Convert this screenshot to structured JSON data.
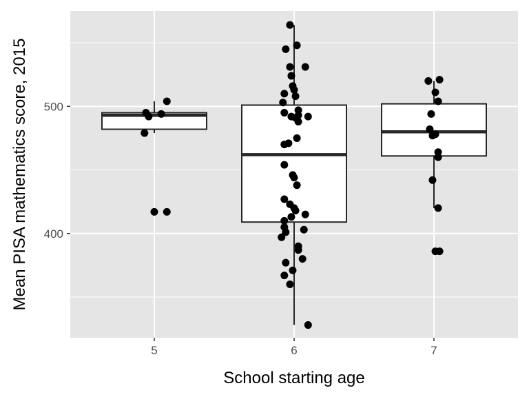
{
  "chart_data": {
    "type": "boxplot",
    "title": "",
    "xlabel": "School starting age",
    "ylabel": "Mean PISA mathematics score, 2015",
    "categories": [
      "5",
      "6",
      "7"
    ],
    "ylim": [
      318,
      575
    ],
    "y_ticks": [
      400,
      500
    ],
    "grid": true,
    "legend": "none",
    "boxes": [
      {
        "category": "5",
        "whisker_low": 479,
        "q1": 482,
        "median": 493,
        "q3": 495,
        "whisker_high": 504
      },
      {
        "category": "6",
        "whisker_low": 328,
        "q1": 409,
        "median": 462,
        "q3": 501,
        "whisker_high": 564
      },
      {
        "category": "7",
        "whisker_low": 420,
        "q1": 461,
        "median": 480,
        "q3": 502,
        "whisker_high": 520
      }
    ],
    "points": [
      {
        "x": 4.93,
        "y": 479
      },
      {
        "x": 4.94,
        "y": 495
      },
      {
        "x": 4.96,
        "y": 492
      },
      {
        "x": 5.05,
        "y": 494
      },
      {
        "x": 5.09,
        "y": 504
      },
      {
        "x": 5.0,
        "y": 417
      },
      {
        "x": 5.09,
        "y": 417
      },
      {
        "x": 5.97,
        "y": 564
      },
      {
        "x": 6.02,
        "y": 548
      },
      {
        "x": 5.94,
        "y": 545
      },
      {
        "x": 6.08,
        "y": 531
      },
      {
        "x": 5.97,
        "y": 531
      },
      {
        "x": 5.98,
        "y": 524
      },
      {
        "x": 5.99,
        "y": 516
      },
      {
        "x": 6.0,
        "y": 513
      },
      {
        "x": 5.93,
        "y": 510
      },
      {
        "x": 6.01,
        "y": 508
      },
      {
        "x": 5.92,
        "y": 503
      },
      {
        "x": 6.03,
        "y": 497
      },
      {
        "x": 5.93,
        "y": 495
      },
      {
        "x": 6.03,
        "y": 493
      },
      {
        "x": 5.98,
        "y": 492
      },
      {
        "x": 6.1,
        "y": 492
      },
      {
        "x": 6.01,
        "y": 491
      },
      {
        "x": 6.03,
        "y": 488
      },
      {
        "x": 6.02,
        "y": 475
      },
      {
        "x": 5.96,
        "y": 471
      },
      {
        "x": 5.93,
        "y": 470
      },
      {
        "x": 5.93,
        "y": 454
      },
      {
        "x": 5.99,
        "y": 446
      },
      {
        "x": 6.0,
        "y": 444
      },
      {
        "x": 6.02,
        "y": 438
      },
      {
        "x": 5.93,
        "y": 427
      },
      {
        "x": 5.97,
        "y": 423
      },
      {
        "x": 6.0,
        "y": 420
      },
      {
        "x": 6.01,
        "y": 418
      },
      {
        "x": 6.08,
        "y": 415
      },
      {
        "x": 5.98,
        "y": 413
      },
      {
        "x": 5.93,
        "y": 410
      },
      {
        "x": 5.93,
        "y": 405
      },
      {
        "x": 6.07,
        "y": 403
      },
      {
        "x": 5.94,
        "y": 401
      },
      {
        "x": 5.91,
        "y": 397
      },
      {
        "x": 6.03,
        "y": 390
      },
      {
        "x": 6.03,
        "y": 387
      },
      {
        "x": 6.06,
        "y": 380
      },
      {
        "x": 5.94,
        "y": 377
      },
      {
        "x": 5.99,
        "y": 371
      },
      {
        "x": 5.93,
        "y": 367
      },
      {
        "x": 5.97,
        "y": 360
      },
      {
        "x": 6.1,
        "y": 328
      },
      {
        "x": 6.96,
        "y": 520
      },
      {
        "x": 7.04,
        "y": 521
      },
      {
        "x": 7.01,
        "y": 511
      },
      {
        "x": 7.03,
        "y": 504
      },
      {
        "x": 6.98,
        "y": 494
      },
      {
        "x": 6.97,
        "y": 482
      },
      {
        "x": 7.01,
        "y": 478
      },
      {
        "x": 6.99,
        "y": 477
      },
      {
        "x": 7.03,
        "y": 464
      },
      {
        "x": 7.03,
        "y": 460
      },
      {
        "x": 6.99,
        "y": 442
      },
      {
        "x": 7.03,
        "y": 420
      },
      {
        "x": 7.01,
        "y": 386
      },
      {
        "x": 7.04,
        "y": 386
      }
    ],
    "colors": {
      "panel": "#e5e5e5",
      "grid": "#ffffff",
      "box_fill": "#ffffff",
      "box_line": "#262626",
      "point": "#000000"
    }
  }
}
